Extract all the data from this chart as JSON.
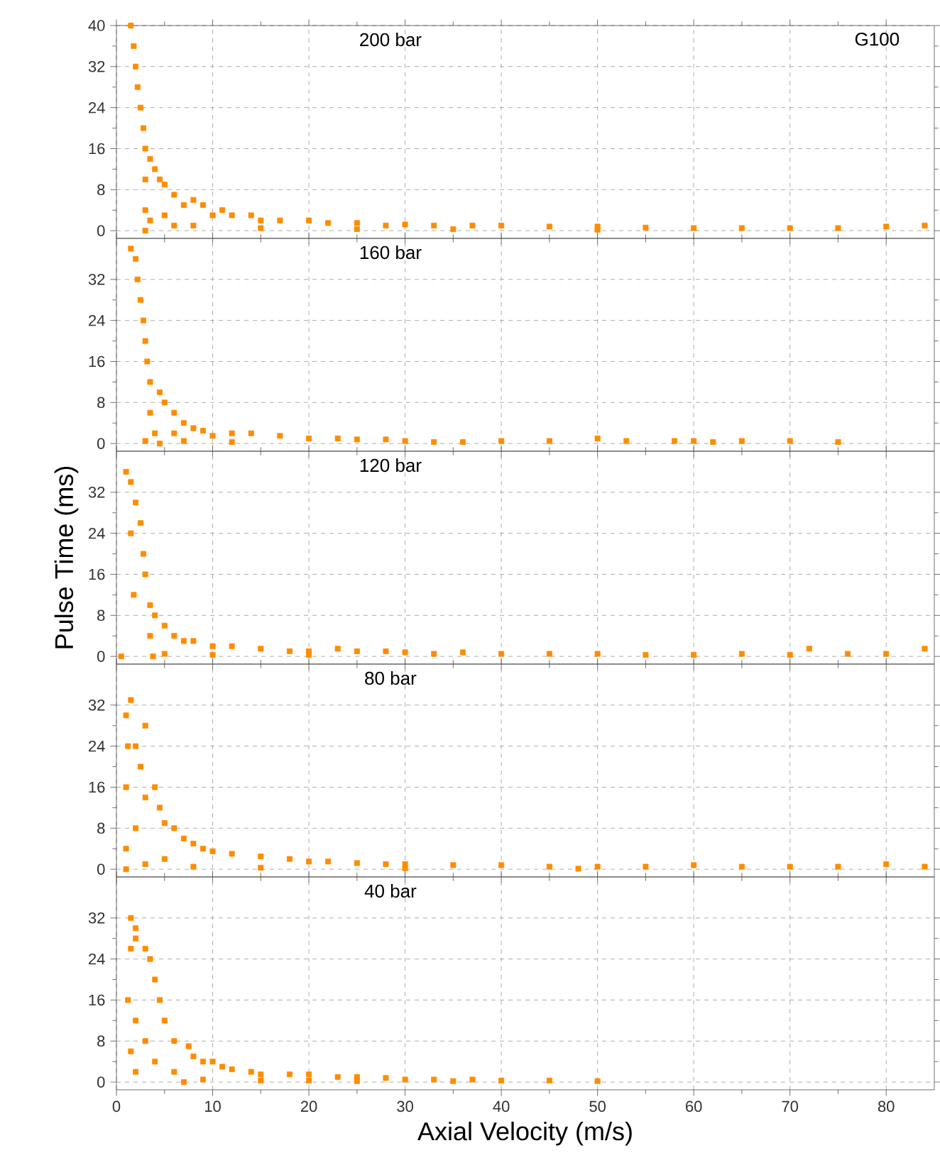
{
  "chart_data": [
    {
      "type": "scatter",
      "annotations": [
        "200 bar",
        "G100"
      ],
      "xlim": [
        0,
        85
      ],
      "ylim": [
        -1.5,
        40
      ],
      "xticks": [
        0,
        10,
        20,
        30,
        40,
        50,
        60,
        70,
        80
      ],
      "yticks": [
        0,
        8,
        16,
        24,
        32,
        40
      ],
      "grid": true,
      "marker": "square",
      "tick_labels": "y",
      "series": [
        {
          "color": "#ff8c00",
          "x": [
            1.5,
            1.8,
            2,
            2.2,
            2.5,
            2.8,
            3,
            3,
            3,
            3,
            3.5,
            4,
            4.5,
            5,
            5,
            6,
            6,
            7,
            8,
            9,
            10,
            11,
            12,
            14,
            15,
            17,
            20,
            22,
            25,
            28,
            30,
            33,
            37,
            40,
            45,
            50,
            55,
            60,
            65,
            70,
            75,
            80,
            84,
            3.5,
            8,
            15,
            25,
            35,
            50
          ],
          "values": [
            40,
            36,
            32,
            28,
            24,
            20,
            16,
            10,
            4,
            0,
            14,
            12,
            10,
            9,
            3,
            7,
            1,
            5,
            6,
            5,
            3,
            4,
            3,
            3,
            2,
            2,
            2,
            1.5,
            1.5,
            1,
            1.2,
            1,
            1,
            1,
            0.8,
            0.8,
            0.6,
            0.5,
            0.5,
            0.5,
            0.5,
            0.8,
            1,
            2,
            1,
            0.5,
            0.3,
            0.3,
            0.2
          ]
        }
      ]
    },
    {
      "type": "scatter",
      "annotations": [
        "160 bar"
      ],
      "xlim": [
        0,
        85
      ],
      "ylim": [
        -1.5,
        40
      ],
      "xticks": [
        0,
        10,
        20,
        30,
        40,
        50,
        60,
        70,
        80
      ],
      "yticks": [
        0,
        8,
        16,
        24,
        32
      ],
      "grid": true,
      "marker": "square",
      "tick_labels": "y",
      "series": [
        {
          "color": "#ff8c00",
          "x": [
            1.5,
            2,
            2.2,
            2.5,
            2.8,
            3,
            3.2,
            3.5,
            3.5,
            4,
            4.5,
            4.5,
            5,
            6,
            6,
            7,
            8,
            9,
            10,
            12,
            14,
            17,
            20,
            23,
            25,
            28,
            30,
            33,
            36,
            40,
            45,
            50,
            53,
            58,
            60,
            62,
            65,
            70,
            75,
            3,
            7,
            12
          ],
          "values": [
            38,
            36,
            32,
            28,
            24,
            20,
            16,
            12,
            6,
            2,
            0,
            10,
            8,
            6,
            2,
            4,
            3,
            2.5,
            1.5,
            2,
            2,
            1.5,
            1,
            1,
            0.8,
            0.8,
            0.5,
            0.3,
            0.3,
            0.5,
            0.5,
            1,
            0.5,
            0.5,
            0.5,
            0.3,
            0.5,
            0.5,
            0.3,
            0.5,
            0.5,
            0.3
          ]
        }
      ]
    },
    {
      "type": "scatter",
      "annotations": [
        "120 bar"
      ],
      "ylabel": "Pulse Time (ms)",
      "xlim": [
        0,
        85
      ],
      "ylim": [
        -1.5,
        40
      ],
      "xticks": [
        0,
        10,
        20,
        30,
        40,
        50,
        60,
        70,
        80
      ],
      "yticks": [
        0,
        8,
        16,
        24,
        32
      ],
      "grid": true,
      "marker": "square",
      "tick_labels": "y",
      "series": [
        {
          "color": "#ff8c00",
          "x": [
            1,
            1.5,
            2,
            1.5,
            2.5,
            2.8,
            3,
            1.8,
            3.5,
            3.5,
            3.8,
            4,
            5,
            6,
            7,
            8,
            10,
            12,
            15,
            18,
            20,
            23,
            25,
            28,
            30,
            33,
            36,
            40,
            45,
            50,
            55,
            60,
            65,
            70,
            72,
            76,
            80,
            84,
            0.5,
            5,
            10,
            20
          ],
          "values": [
            36,
            34,
            30,
            24,
            26,
            20,
            16,
            12,
            10,
            4,
            0,
            8,
            6,
            4,
            3,
            3,
            2,
            2,
            1.5,
            1,
            1,
            1.5,
            1,
            1,
            0.8,
            0.5,
            0.8,
            0.5,
            0.5,
            0.5,
            0.3,
            0.3,
            0.5,
            0.3,
            1.5,
            0.5,
            0.5,
            1.5,
            0,
            0.5,
            0.3,
            0.3
          ]
        }
      ]
    },
    {
      "type": "scatter",
      "annotations": [
        "80 bar"
      ],
      "xlim": [
        0,
        85
      ],
      "ylim": [
        -1.5,
        40
      ],
      "xticks": [
        0,
        10,
        20,
        30,
        40,
        50,
        60,
        70,
        80
      ],
      "yticks": [
        0,
        8,
        16,
        24,
        32
      ],
      "grid": true,
      "marker": "square",
      "tick_labels": "y",
      "series": [
        {
          "color": "#ff8c00",
          "x": [
            1,
            1.5,
            1.2,
            2,
            3,
            2.5,
            1,
            1,
            1,
            2,
            3,
            4,
            4.5,
            5,
            5,
            6,
            7,
            8,
            9,
            10,
            12,
            15,
            18,
            20,
            22,
            25,
            28,
            30,
            35,
            40,
            45,
            50,
            55,
            60,
            65,
            70,
            75,
            80,
            84,
            3,
            8,
            15,
            30,
            48
          ],
          "values": [
            30,
            33,
            24,
            24,
            28,
            20,
            16,
            4,
            0,
            8,
            14,
            16,
            12,
            9,
            2,
            8,
            6,
            5,
            4,
            3.5,
            3,
            2.5,
            2,
            1.5,
            1.5,
            1.2,
            1,
            1,
            0.8,
            0.8,
            0.5,
            0.5,
            0.5,
            0.8,
            0.5,
            0.5,
            0.5,
            1,
            0.5,
            1,
            0.5,
            0.3,
            0.2,
            0.1
          ]
        }
      ]
    },
    {
      "type": "scatter",
      "annotations": [
        "40 bar"
      ],
      "xlabel": "Axial Velocity (m/s)",
      "xlim": [
        0,
        85
      ],
      "ylim": [
        -1.5,
        40
      ],
      "xticks": [
        0,
        10,
        20,
        30,
        40,
        50,
        60,
        70,
        80
      ],
      "yticks": [
        0,
        8,
        16,
        24,
        32
      ],
      "grid": true,
      "marker": "square",
      "series": [
        {
          "color": "#ff8c00",
          "x": [
            1.5,
            2,
            1.5,
            2,
            3,
            3.5,
            1.2,
            2,
            1.5,
            2,
            4,
            4.5,
            5,
            3,
            6,
            4,
            6,
            7,
            7.5,
            8,
            9,
            10,
            11,
            12,
            14,
            15,
            18,
            20,
            23,
            25,
            28,
            30,
            33,
            37,
            40,
            45,
            50,
            9,
            15,
            20,
            25,
            35
          ],
          "values": [
            32,
            30,
            26,
            28,
            26,
            24,
            16,
            12,
            6,
            2,
            20,
            16,
            12,
            8,
            8,
            4,
            2,
            0,
            7,
            5,
            4,
            4,
            3,
            2.5,
            2,
            1.5,
            1.5,
            1.5,
            1,
            1,
            0.8,
            0.5,
            0.5,
            0.5,
            0.3,
            0.3,
            0.2,
            0.5,
            0.3,
            0.3,
            0.2,
            0.2
          ]
        }
      ]
    }
  ]
}
